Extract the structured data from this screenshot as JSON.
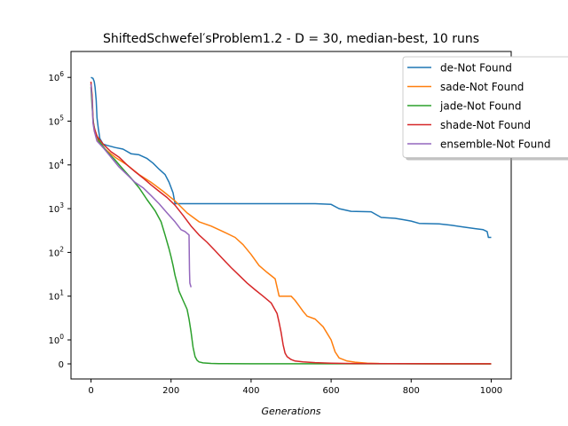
{
  "chart_data": {
    "type": "line",
    "title": "ShiftedSchwefel′sProblem1.2  - D = 30, median-best, 10 runs",
    "xlabel": "Generations",
    "ylabel": "",
    "xlim": [
      -50,
      1050
    ],
    "x_ticks": [
      "0",
      "200",
      "400",
      "600",
      "800",
      "1000"
    ],
    "y_scale": "symlog",
    "y_ticks": [
      "0",
      "10^0",
      "10^1",
      "10^2",
      "10^3",
      "10^4",
      "10^5",
      "10^6"
    ],
    "legend_position": "top-right",
    "series": [
      {
        "name": "de-Not Found",
        "color": "#1f77b4",
        "points": [
          [
            0,
            1000000
          ],
          [
            5,
            950000
          ],
          [
            8,
            800000
          ],
          [
            10,
            600000
          ],
          [
            13,
            300000
          ],
          [
            15,
            120000
          ],
          [
            18,
            70000
          ],
          [
            22,
            40000
          ],
          [
            30,
            30000
          ],
          [
            40,
            28000
          ],
          [
            60,
            25000
          ],
          [
            80,
            23000
          ],
          [
            100,
            18000
          ],
          [
            120,
            17000
          ],
          [
            140,
            14000
          ],
          [
            155,
            11000
          ],
          [
            170,
            8000
          ],
          [
            185,
            6000
          ],
          [
            195,
            4000
          ],
          [
            205,
            2300
          ],
          [
            210,
            1300
          ],
          [
            260,
            1300
          ],
          [
            400,
            1300
          ],
          [
            560,
            1300
          ],
          [
            600,
            1250
          ],
          [
            620,
            1000
          ],
          [
            650,
            870
          ],
          [
            700,
            850
          ],
          [
            725,
            630
          ],
          [
            760,
            600
          ],
          [
            780,
            560
          ],
          [
            800,
            520
          ],
          [
            820,
            460
          ],
          [
            870,
            450
          ],
          [
            900,
            420
          ],
          [
            930,
            380
          ],
          [
            960,
            350
          ],
          [
            980,
            330
          ],
          [
            990,
            300
          ],
          [
            993,
            220
          ],
          [
            1000,
            220
          ]
        ]
      },
      {
        "name": "sade-Not Found",
        "color": "#ff7f0e",
        "points": [
          [
            0,
            700000
          ],
          [
            3,
            400000
          ],
          [
            5,
            120000
          ],
          [
            8,
            60000
          ],
          [
            15,
            38000
          ],
          [
            30,
            25000
          ],
          [
            60,
            15000
          ],
          [
            90,
            10000
          ],
          [
            120,
            6000
          ],
          [
            150,
            4000
          ],
          [
            180,
            2500
          ],
          [
            210,
            1500
          ],
          [
            240,
            800
          ],
          [
            270,
            500
          ],
          [
            300,
            400
          ],
          [
            330,
            300
          ],
          [
            360,
            220
          ],
          [
            380,
            150
          ],
          [
            400,
            90
          ],
          [
            420,
            50
          ],
          [
            440,
            35
          ],
          [
            460,
            25
          ],
          [
            470,
            10
          ],
          [
            500,
            10
          ],
          [
            510,
            8
          ],
          [
            520,
            6
          ],
          [
            530,
            4.5
          ],
          [
            540,
            3.5
          ],
          [
            560,
            3
          ],
          [
            580,
            2
          ],
          [
            600,
            1
          ],
          [
            610,
            0.5
          ],
          [
            620,
            0.25
          ],
          [
            640,
            0.12
          ],
          [
            660,
            0.07
          ],
          [
            690,
            0.03
          ],
          [
            720,
            0.015
          ],
          [
            780,
            0.007
          ],
          [
            850,
            0.003
          ],
          [
            1000,
            0.001
          ]
        ]
      },
      {
        "name": "jade-Not Found",
        "color": "#2ca02c",
        "points": [
          [
            0,
            600000
          ],
          [
            3,
            200000
          ],
          [
            6,
            90000
          ],
          [
            10,
            60000
          ],
          [
            20,
            35000
          ],
          [
            40,
            20000
          ],
          [
            60,
            13000
          ],
          [
            80,
            8000
          ],
          [
            100,
            5000
          ],
          [
            120,
            3000
          ],
          [
            140,
            1600
          ],
          [
            160,
            900
          ],
          [
            175,
            500
          ],
          [
            185,
            250
          ],
          [
            195,
            120
          ],
          [
            200,
            80
          ],
          [
            205,
            50
          ],
          [
            210,
            30
          ],
          [
            215,
            20
          ],
          [
            220,
            13
          ],
          [
            230,
            8
          ],
          [
            240,
            5
          ],
          [
            245,
            3
          ],
          [
            250,
            1.5
          ],
          [
            255,
            0.7
          ],
          [
            260,
            0.3
          ],
          [
            265,
            0.15
          ],
          [
            270,
            0.08
          ],
          [
            280,
            0.04
          ],
          [
            300,
            0.02
          ],
          [
            320,
            0.01
          ],
          [
            400,
            0.005
          ],
          [
            600,
            0.002
          ],
          [
            1000,
            0.001
          ]
        ]
      },
      {
        "name": "shade-Not Found",
        "color": "#d62728",
        "points": [
          [
            0,
            800000
          ],
          [
            3,
            300000
          ],
          [
            5,
            100000
          ],
          [
            8,
            70000
          ],
          [
            15,
            45000
          ],
          [
            30,
            30000
          ],
          [
            50,
            20000
          ],
          [
            70,
            15000
          ],
          [
            90,
            10000
          ],
          [
            110,
            7000
          ],
          [
            130,
            5000
          ],
          [
            150,
            3500
          ],
          [
            170,
            2500
          ],
          [
            190,
            1800
          ],
          [
            210,
            1200
          ],
          [
            230,
            700
          ],
          [
            250,
            400
          ],
          [
            270,
            250
          ],
          [
            290,
            170
          ],
          [
            310,
            110
          ],
          [
            330,
            70
          ],
          [
            350,
            45
          ],
          [
            370,
            30
          ],
          [
            390,
            20
          ],
          [
            410,
            14
          ],
          [
            430,
            10
          ],
          [
            450,
            7
          ],
          [
            465,
            4
          ],
          [
            470,
            2.5
          ],
          [
            475,
            1.5
          ],
          [
            480,
            0.8
          ],
          [
            485,
            0.45
          ],
          [
            490,
            0.3
          ],
          [
            500,
            0.18
          ],
          [
            510,
            0.12
          ],
          [
            530,
            0.08
          ],
          [
            560,
            0.05
          ],
          [
            600,
            0.03
          ],
          [
            650,
            0.015
          ],
          [
            750,
            0.008
          ],
          [
            1000,
            0.004
          ]
        ]
      },
      {
        "name": "ensemble-Not Found",
        "color": "#9467bd",
        "points": [
          [
            0,
            700000
          ],
          [
            3,
            300000
          ],
          [
            5,
            90000
          ],
          [
            8,
            60000
          ],
          [
            15,
            35000
          ],
          [
            30,
            25000
          ],
          [
            50,
            15000
          ],
          [
            70,
            9000
          ],
          [
            90,
            6000
          ],
          [
            110,
            4000
          ],
          [
            130,
            3000
          ],
          [
            150,
            2000
          ],
          [
            170,
            1300
          ],
          [
            190,
            800
          ],
          [
            210,
            500
          ],
          [
            225,
            330
          ],
          [
            235,
            300
          ],
          [
            245,
            250
          ],
          [
            246,
            40
          ],
          [
            247,
            20
          ],
          [
            250,
            16
          ]
        ]
      }
    ]
  }
}
